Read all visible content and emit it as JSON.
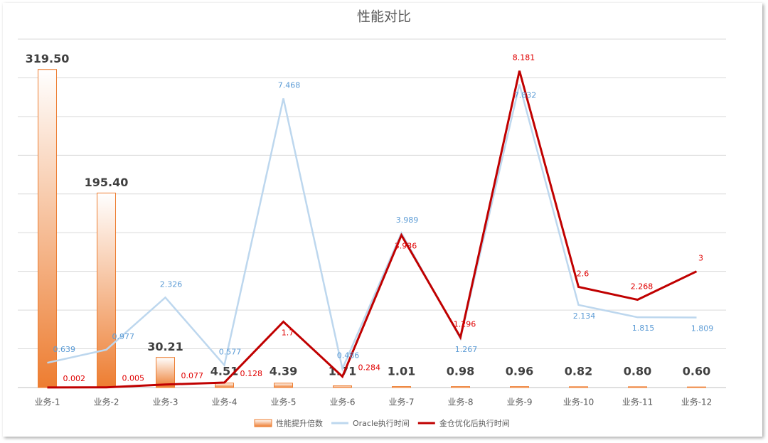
{
  "chart_data": {
    "type": "bar-line",
    "title": "性能对比",
    "categories": [
      "业务-1",
      "业务-2",
      "业务-3",
      "业务-4",
      "业务-5",
      "业务-6",
      "业务-7",
      "业务-8",
      "业务-9",
      "业务-10",
      "业务-11",
      "业务-12"
    ],
    "ylim": [
      0,
      350
    ],
    "y2lim": [
      0,
      9
    ],
    "y2ticks": [
      0,
      1,
      2,
      3,
      4,
      5,
      6,
      7,
      8,
      9
    ],
    "grid": true,
    "legend": "bottom",
    "series": [
      {
        "name": "性能提升倍数",
        "type": "bar",
        "color": "#ed7d31",
        "values": [
          319.5,
          195.4,
          30.21,
          4.51,
          4.39,
          1.71,
          1.01,
          0.98,
          0.96,
          0.82,
          0.8,
          0.6
        ],
        "value_labels": [
          "319.50",
          "195.40",
          "30.21",
          "4.51",
          "4.39",
          "1.71",
          "1.01",
          "0.98",
          "0.96",
          "0.82",
          "0.80",
          "0.60"
        ]
      },
      {
        "name": "Oracle执行时间",
        "type": "line",
        "axis": "y2",
        "color": "#bdd7ee",
        "label_color": "#5b9bd5",
        "values": [
          0.639,
          0.977,
          2.326,
          0.577,
          7.468,
          0.486,
          3.989,
          1.267,
          7.832,
          2.134,
          1.815,
          1.809
        ]
      },
      {
        "name": "金仓优化后执行时间",
        "type": "line",
        "axis": "y2",
        "color": "#c00000",
        "label_color": "#e00000",
        "values": [
          0.002,
          0.005,
          0.077,
          0.128,
          1.7,
          0.284,
          3.936,
          1.296,
          8.181,
          2.6,
          2.268,
          3
        ]
      }
    ]
  }
}
